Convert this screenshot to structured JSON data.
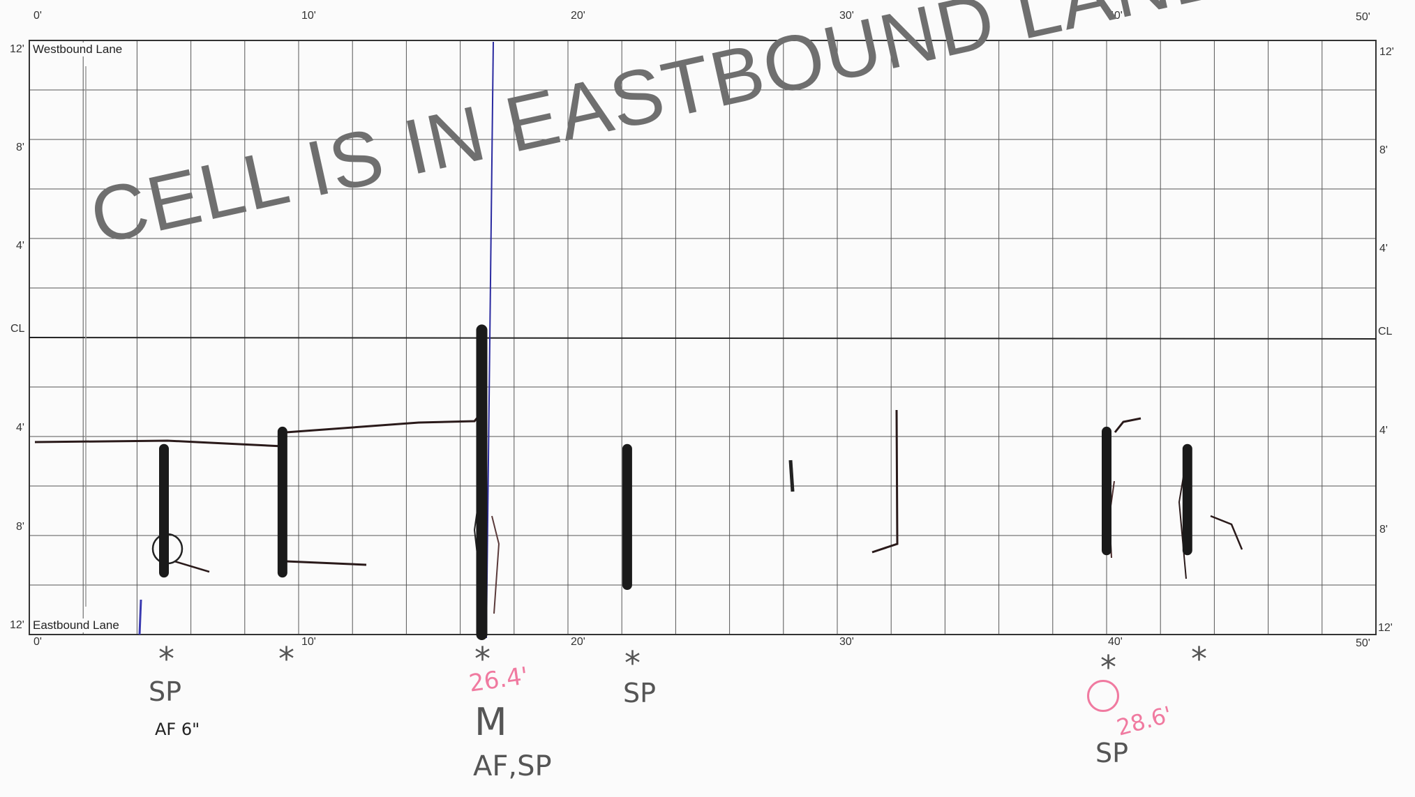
{
  "x_axis": {
    "ticks": [
      "0'",
      "10'",
      "20'",
      "30'",
      "40'",
      "50'"
    ],
    "tick_feet": [
      0,
      10,
      20,
      30,
      40,
      50
    ],
    "range_feet": [
      0,
      50
    ]
  },
  "y_axis": {
    "left_ticks": [
      "12'",
      "8'",
      "4'",
      "CL",
      "4'",
      "8'",
      "12'"
    ],
    "right_ticks": [
      "12'",
      "8'",
      "4'",
      "CL",
      "4'",
      "8'",
      "12'"
    ],
    "range_feet": [
      -12,
      12
    ]
  },
  "lanes": {
    "westbound": "Westbound Lane",
    "eastbound": "Eastbound Lane"
  },
  "watermark": "CELL IS IN EASTBOUND LANE",
  "colors": {
    "grid": "#555555",
    "marker": "#1a1a1a",
    "blue_line": "#2a2aa0",
    "pink": "#f07aa0",
    "watermark": "#6f6f6f"
  },
  "annotations": {
    "a1_star": "*",
    "a1_code": "SP",
    "a1_note": "AF 6\"",
    "a2_star": "*",
    "a3_star": "*",
    "a3_pink": "26.4'",
    "a3_code": "M",
    "a3_note": "AF,SP",
    "a4_star": "*",
    "a4_code": "SP",
    "a5_star": "*",
    "a5_pink": "28.6'",
    "a5_code": "SP",
    "a6_star": "*"
  },
  "crack_markers_feet": [
    {
      "x": 5,
      "y_top": 4.5,
      "y_bottom": 9.5
    },
    {
      "x": 9.4,
      "y_top": 3.8,
      "y_bottom": 9.5
    },
    {
      "x": 16.8,
      "y_top": -0.3,
      "y_bottom": 12
    },
    {
      "x": 22.2,
      "y_top": 4.5,
      "y_bottom": 10
    },
    {
      "x": 40,
      "y_top": 3.8,
      "y_bottom": 8.6
    },
    {
      "x": 43,
      "y_top": 4.5,
      "y_bottom": 8.6
    }
  ]
}
